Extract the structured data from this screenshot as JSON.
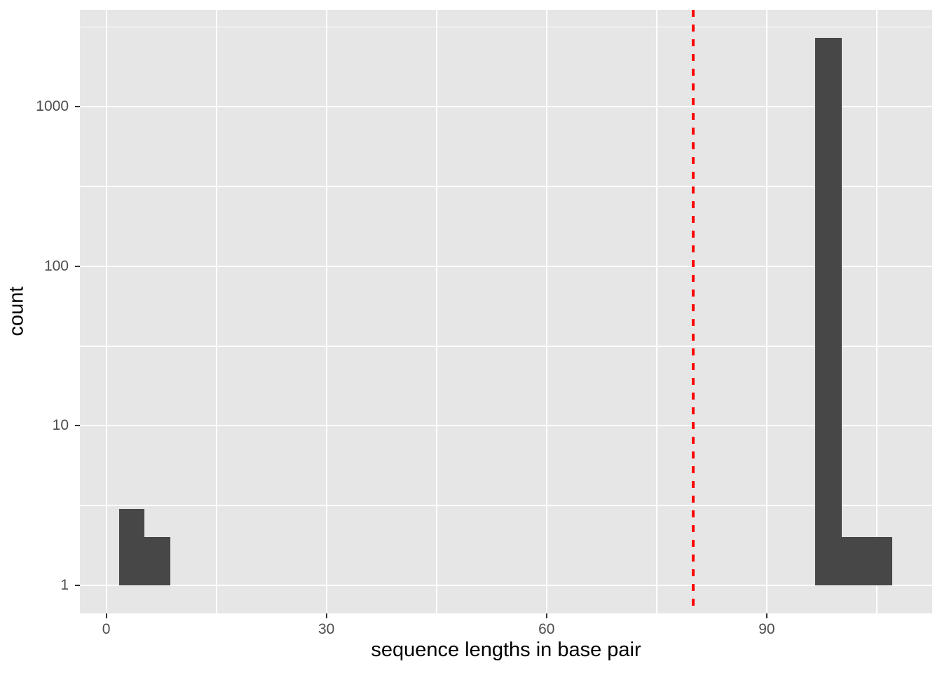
{
  "chart_data": {
    "type": "bar",
    "subtype": "histogram",
    "title": "",
    "xlabel": "sequence lengths in base pair",
    "ylabel": "count",
    "x_ticks": [
      0,
      30,
      60,
      90
    ],
    "x_minor_ticks": [
      15,
      45,
      75,
      105
    ],
    "x_range": [
      -3.6,
      112.6
    ],
    "y_scale": "log10",
    "y_ticks": [
      1,
      10,
      100,
      1000
    ],
    "y_tick_labels": [
      "1",
      "10",
      "100",
      "1000"
    ],
    "y_minor_ticks": [
      3.16,
      31.6,
      316,
      3162
    ],
    "y_range": [
      0.67,
      4000
    ],
    "grid": true,
    "legend": false,
    "bar_baseline": 1,
    "bars": [
      {
        "x_from": 1.8,
        "x_to": 5.2,
        "count": 3
      },
      {
        "x_from": 5.2,
        "x_to": 8.7,
        "count": 2
      },
      {
        "x_from": 96.6,
        "x_to": 100.2,
        "count": 2700
      },
      {
        "x_from": 100.2,
        "x_to": 107.1,
        "count": 2
      }
    ],
    "vline": {
      "x": 80,
      "style": "dashed",
      "color": "#FF0000"
    },
    "colors": {
      "bar": "#474747",
      "panel_bg": "#E6E6E6",
      "grid": "#FFFFFF",
      "tick_label": "#4D4D4D",
      "tick_mark": "#333333",
      "axis_title": "#000000",
      "background": "#FFFFFF"
    }
  }
}
